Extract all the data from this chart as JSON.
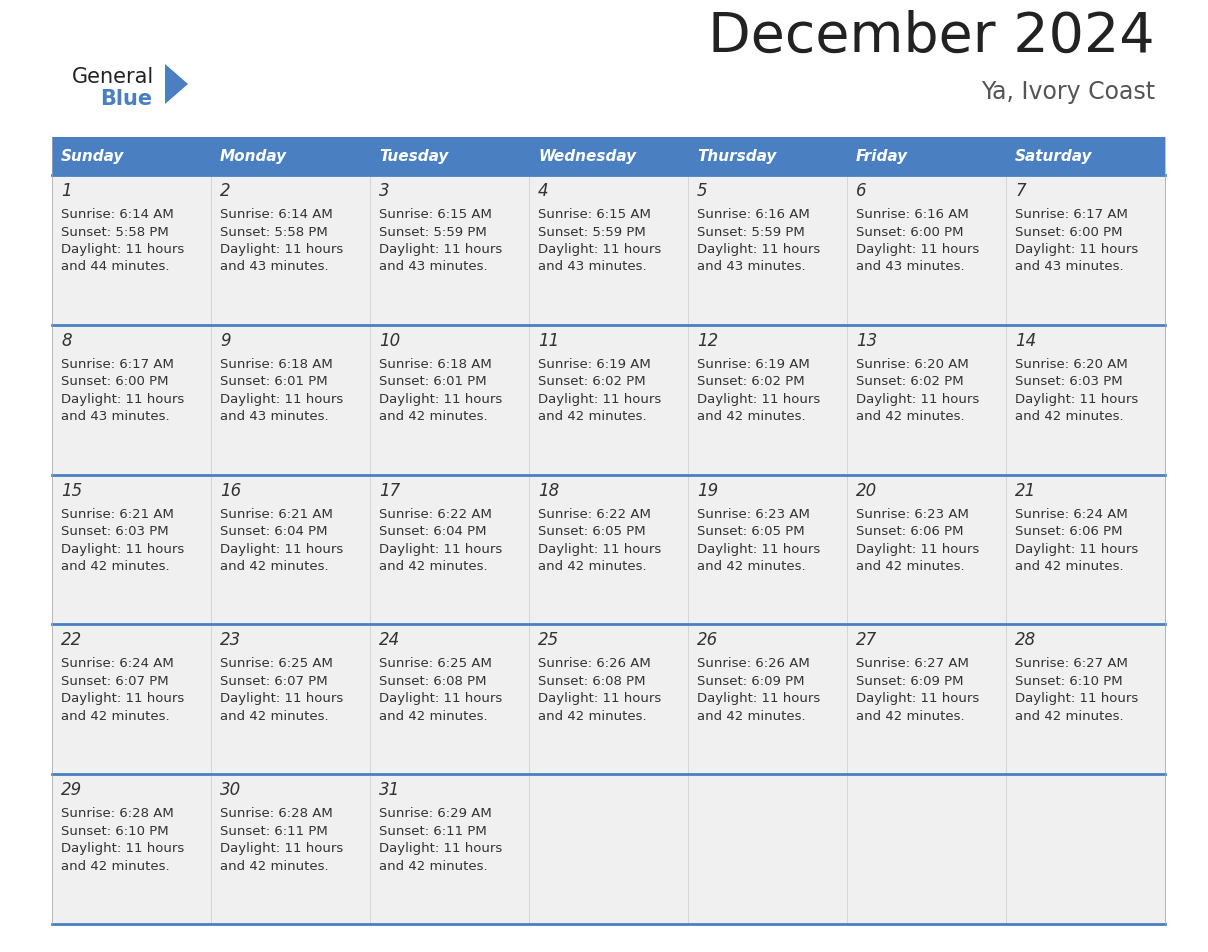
{
  "title": "December 2024",
  "subtitle": "Ya, Ivory Coast",
  "days_of_week": [
    "Sunday",
    "Monday",
    "Tuesday",
    "Wednesday",
    "Thursday",
    "Friday",
    "Saturday"
  ],
  "header_bg_color": "#4a7fc1",
  "header_text_color": "#FFFFFF",
  "cell_bg_color": "#f0f0f0",
  "border_color": "#4a7fc1",
  "day_num_color": "#333333",
  "cell_text_color": "#333333",
  "title_color": "#222222",
  "subtitle_color": "#555555",
  "logo_general_color": "#222222",
  "logo_blue_color": "#4a7fc1",
  "weeks": [
    [
      {
        "day": 1,
        "sunrise": "6:14 AM",
        "sunset": "5:58 PM",
        "dl1": "Daylight: 11 hours",
        "dl2": "and 44 minutes."
      },
      {
        "day": 2,
        "sunrise": "6:14 AM",
        "sunset": "5:58 PM",
        "dl1": "Daylight: 11 hours",
        "dl2": "and 43 minutes."
      },
      {
        "day": 3,
        "sunrise": "6:15 AM",
        "sunset": "5:59 PM",
        "dl1": "Daylight: 11 hours",
        "dl2": "and 43 minutes."
      },
      {
        "day": 4,
        "sunrise": "6:15 AM",
        "sunset": "5:59 PM",
        "dl1": "Daylight: 11 hours",
        "dl2": "and 43 minutes."
      },
      {
        "day": 5,
        "sunrise": "6:16 AM",
        "sunset": "5:59 PM",
        "dl1": "Daylight: 11 hours",
        "dl2": "and 43 minutes."
      },
      {
        "day": 6,
        "sunrise": "6:16 AM",
        "sunset": "6:00 PM",
        "dl1": "Daylight: 11 hours",
        "dl2": "and 43 minutes."
      },
      {
        "day": 7,
        "sunrise": "6:17 AM",
        "sunset": "6:00 PM",
        "dl1": "Daylight: 11 hours",
        "dl2": "and 43 minutes."
      }
    ],
    [
      {
        "day": 8,
        "sunrise": "6:17 AM",
        "sunset": "6:00 PM",
        "dl1": "Daylight: 11 hours",
        "dl2": "and 43 minutes."
      },
      {
        "day": 9,
        "sunrise": "6:18 AM",
        "sunset": "6:01 PM",
        "dl1": "Daylight: 11 hours",
        "dl2": "and 43 minutes."
      },
      {
        "day": 10,
        "sunrise": "6:18 AM",
        "sunset": "6:01 PM",
        "dl1": "Daylight: 11 hours",
        "dl2": "and 42 minutes."
      },
      {
        "day": 11,
        "sunrise": "6:19 AM",
        "sunset": "6:02 PM",
        "dl1": "Daylight: 11 hours",
        "dl2": "and 42 minutes."
      },
      {
        "day": 12,
        "sunrise": "6:19 AM",
        "sunset": "6:02 PM",
        "dl1": "Daylight: 11 hours",
        "dl2": "and 42 minutes."
      },
      {
        "day": 13,
        "sunrise": "6:20 AM",
        "sunset": "6:02 PM",
        "dl1": "Daylight: 11 hours",
        "dl2": "and 42 minutes."
      },
      {
        "day": 14,
        "sunrise": "6:20 AM",
        "sunset": "6:03 PM",
        "dl1": "Daylight: 11 hours",
        "dl2": "and 42 minutes."
      }
    ],
    [
      {
        "day": 15,
        "sunrise": "6:21 AM",
        "sunset": "6:03 PM",
        "dl1": "Daylight: 11 hours",
        "dl2": "and 42 minutes."
      },
      {
        "day": 16,
        "sunrise": "6:21 AM",
        "sunset": "6:04 PM",
        "dl1": "Daylight: 11 hours",
        "dl2": "and 42 minutes."
      },
      {
        "day": 17,
        "sunrise": "6:22 AM",
        "sunset": "6:04 PM",
        "dl1": "Daylight: 11 hours",
        "dl2": "and 42 minutes."
      },
      {
        "day": 18,
        "sunrise": "6:22 AM",
        "sunset": "6:05 PM",
        "dl1": "Daylight: 11 hours",
        "dl2": "and 42 minutes."
      },
      {
        "day": 19,
        "sunrise": "6:23 AM",
        "sunset": "6:05 PM",
        "dl1": "Daylight: 11 hours",
        "dl2": "and 42 minutes."
      },
      {
        "day": 20,
        "sunrise": "6:23 AM",
        "sunset": "6:06 PM",
        "dl1": "Daylight: 11 hours",
        "dl2": "and 42 minutes."
      },
      {
        "day": 21,
        "sunrise": "6:24 AM",
        "sunset": "6:06 PM",
        "dl1": "Daylight: 11 hours",
        "dl2": "and 42 minutes."
      }
    ],
    [
      {
        "day": 22,
        "sunrise": "6:24 AM",
        "sunset": "6:07 PM",
        "dl1": "Daylight: 11 hours",
        "dl2": "and 42 minutes."
      },
      {
        "day": 23,
        "sunrise": "6:25 AM",
        "sunset": "6:07 PM",
        "dl1": "Daylight: 11 hours",
        "dl2": "and 42 minutes."
      },
      {
        "day": 24,
        "sunrise": "6:25 AM",
        "sunset": "6:08 PM",
        "dl1": "Daylight: 11 hours",
        "dl2": "and 42 minutes."
      },
      {
        "day": 25,
        "sunrise": "6:26 AM",
        "sunset": "6:08 PM",
        "dl1": "Daylight: 11 hours",
        "dl2": "and 42 minutes."
      },
      {
        "day": 26,
        "sunrise": "6:26 AM",
        "sunset": "6:09 PM",
        "dl1": "Daylight: 11 hours",
        "dl2": "and 42 minutes."
      },
      {
        "day": 27,
        "sunrise": "6:27 AM",
        "sunset": "6:09 PM",
        "dl1": "Daylight: 11 hours",
        "dl2": "and 42 minutes."
      },
      {
        "day": 28,
        "sunrise": "6:27 AM",
        "sunset": "6:10 PM",
        "dl1": "Daylight: 11 hours",
        "dl2": "and 42 minutes."
      }
    ],
    [
      {
        "day": 29,
        "sunrise": "6:28 AM",
        "sunset": "6:10 PM",
        "dl1": "Daylight: 11 hours",
        "dl2": "and 42 minutes."
      },
      {
        "day": 30,
        "sunrise": "6:28 AM",
        "sunset": "6:11 PM",
        "dl1": "Daylight: 11 hours",
        "dl2": "and 42 minutes."
      },
      {
        "day": 31,
        "sunrise": "6:29 AM",
        "sunset": "6:11 PM",
        "dl1": "Daylight: 11 hours",
        "dl2": "and 42 minutes."
      },
      null,
      null,
      null,
      null
    ]
  ]
}
